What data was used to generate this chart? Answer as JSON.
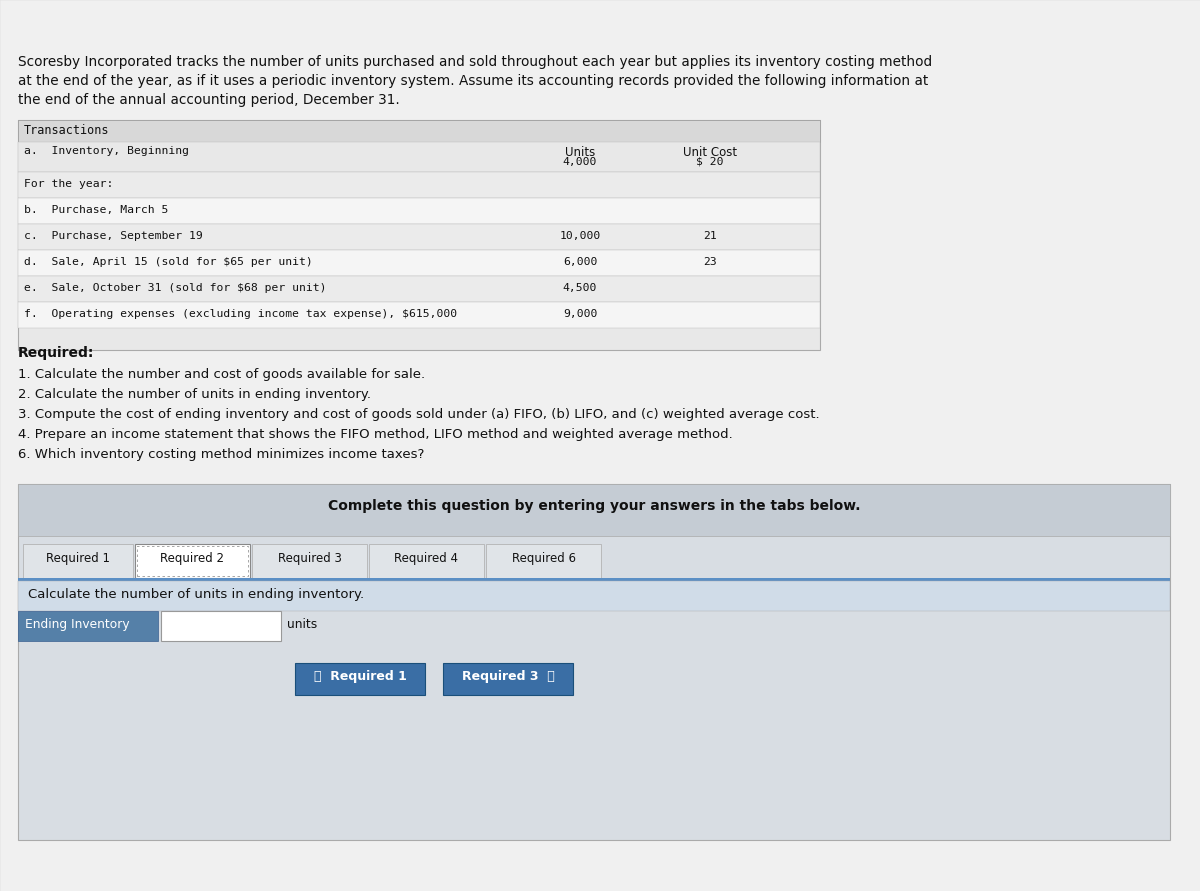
{
  "bg_color": "#c8c8c8",
  "page_bg": "#f0f0f0",
  "white": "#ffffff",
  "table_bg": "#f5f5f5",
  "table_header_bg": "#d8d8d8",
  "row_alt1": "#ebebeb",
  "row_alt2": "#f5f5f5",
  "blue_button": "#3a6ea5",
  "tab_active_bg": "#ffffff",
  "tab_inactive_bg": "#e0e4e8",
  "complete_box_bg": "#d8dde3",
  "complete_header_bg": "#c5ccd4",
  "instr_bg": "#d0dce8",
  "field_label_bg": "#5580a8",
  "sep_line_color": "#5b8fc5",
  "intro_text": "Scoresby Incorporated tracks the number of units purchased and sold throughout each year but applies its inventory costing method\nat the end of the year, as if it uses a periodic inventory system. Assume its accounting records provided the following information at\nthe end of the annual accounting period, December 31.",
  "table_header": "Transactions",
  "col_units_header": "Units",
  "col_cost_header": "Unit Cost",
  "rows": [
    {
      "label": "a.  Inventory, Beginning",
      "units": "4,000",
      "cost": "$ 20",
      "row_idx": 0
    },
    {
      "label": "For the year:",
      "units": "",
      "cost": "",
      "row_idx": 1
    },
    {
      "label": "b.  Purchase, March 5",
      "units": "",
      "cost": "",
      "row_idx": 2
    },
    {
      "label": "c.  Purchase, September 19",
      "units": "10,000",
      "cost": "21",
      "row_idx": 3
    },
    {
      "label": "d.  Sale, April 15 (sold for $65 per unit)",
      "units": "6,000",
      "cost": "23",
      "row_idx": 4
    },
    {
      "label": "e.  Sale, October 31 (sold for $68 per unit)",
      "units": "4,500",
      "cost": "",
      "row_idx": 5
    },
    {
      "label": "f.  Operating expenses (excluding income tax expense), $615,000",
      "units": "9,000",
      "cost": "",
      "row_idx": 6
    }
  ],
  "required_label": "Required:",
  "required_items": [
    "1. Calculate the number and cost of goods available for sale.",
    "2. Calculate the number of units in ending inventory.",
    "3. Compute the cost of ending inventory and cost of goods sold under (a) FIFO, (b) LIFO, and (c) weighted average cost.",
    "4. Prepare an income statement that shows the FIFO method, LIFO method and weighted average method.",
    "6. Which inventory costing method minimizes income taxes?"
  ],
  "complete_text": "Complete this question by entering your answers in the tabs below.",
  "tabs": [
    "Required 1",
    "Required 2",
    "Required 3",
    "Required 4",
    "Required 6"
  ],
  "active_tab": 1,
  "instruction_text": "Calculate the number of units in ending inventory.",
  "field_label": "Ending Inventory",
  "field_unit": "units",
  "btn_left": "〈  Required 1",
  "btn_right": "Required 3  〉"
}
